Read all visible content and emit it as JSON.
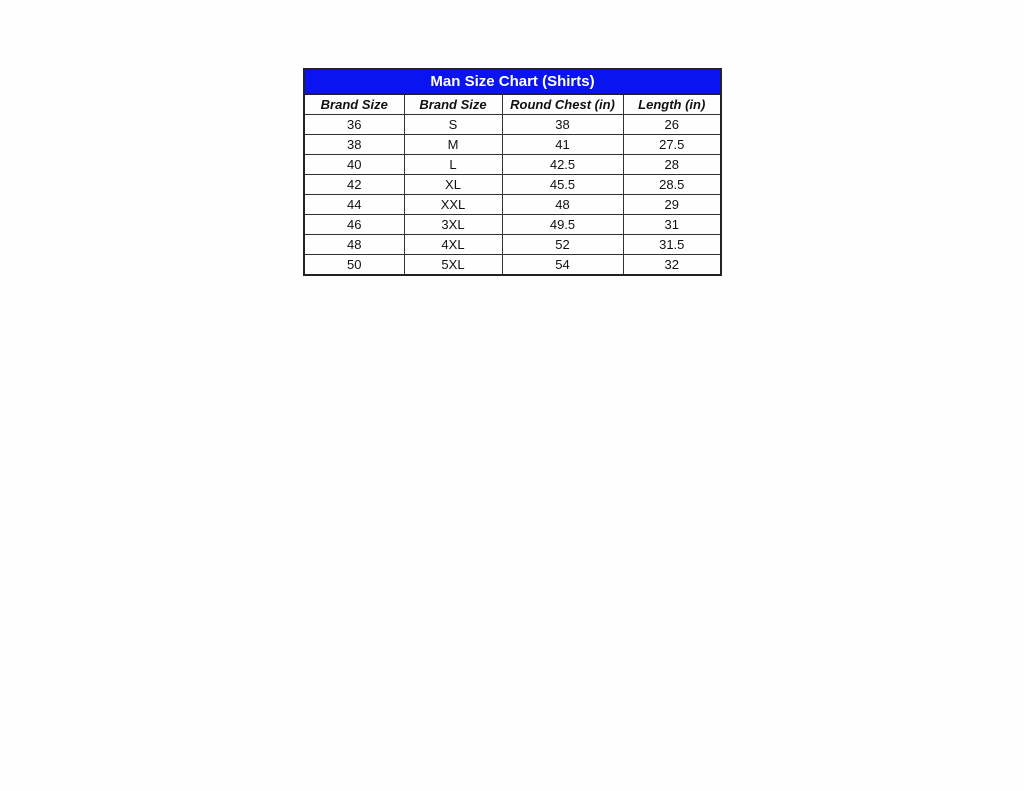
{
  "title": "Man Size Chart (Shirts)",
  "title_bg_color": "#0a14f0",
  "headers": [
    "Brand Size",
    "Brand Size",
    "Round Chest (in)",
    "Length (in)"
  ],
  "rows": [
    [
      "36",
      "S",
      "38",
      "26"
    ],
    [
      "38",
      "M",
      "41",
      "27.5"
    ],
    [
      "40",
      "L",
      "42.5",
      "28"
    ],
    [
      "42",
      "XL",
      "45.5",
      "28.5"
    ],
    [
      "44",
      "XXL",
      "48",
      "29"
    ],
    [
      "46",
      "3XL",
      "49.5",
      "31"
    ],
    [
      "48",
      "4XL",
      "52",
      "31.5"
    ],
    [
      "50",
      "5XL",
      "54",
      "32"
    ]
  ]
}
